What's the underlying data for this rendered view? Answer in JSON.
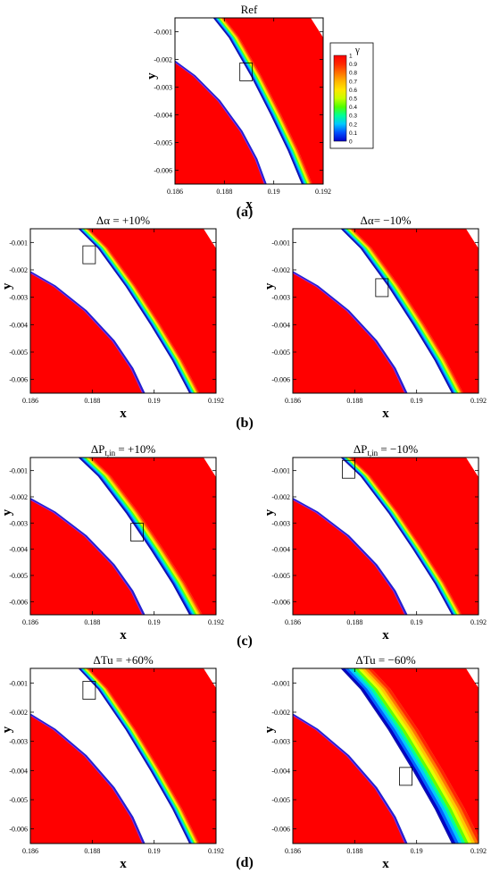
{
  "chart_data": {
    "type": "heatmap",
    "field": "intermittency",
    "colorbar": {
      "title": "γ",
      "ticks": [
        "1",
        "0.9",
        "0.8",
        "0.7",
        "0.6",
        "0.5",
        "0.4",
        "0.3",
        "0.2",
        "0.1",
        "0"
      ],
      "range": [
        0,
        1
      ],
      "colors": [
        "#0000c8",
        "#0050ff",
        "#00c8ff",
        "#00ff96",
        "#50ff00",
        "#c8ff00",
        "#ffe600",
        "#ffb400",
        "#ff6e00",
        "#ff2800",
        "#ff0000"
      ]
    },
    "axes": {
      "xlabel": "x",
      "ylabel": "y",
      "xlim": [
        0.186,
        0.192
      ],
      "ylim": [
        -0.0065,
        -0.0005
      ],
      "xticks": [
        "0.186",
        "0.188",
        "0.19",
        "0.192"
      ],
      "yticks": [
        "-0.001",
        "-0.002",
        "-0.003",
        "-0.004",
        "-0.005",
        "-0.006"
      ]
    },
    "panels": [
      {
        "id": "ref",
        "title": "Ref",
        "band_width": 0.0004,
        "box": [
          0.18888,
          -0.00245
        ]
      },
      {
        "id": "b-left",
        "title": "Δα = +10%",
        "band_width": 0.0003,
        "box": [
          0.1879,
          -0.00145
        ]
      },
      {
        "id": "b-right",
        "title": "Δα= −10%",
        "band_width": 0.00035,
        "box": [
          0.18888,
          -0.00265
        ]
      },
      {
        "id": "c-left",
        "title": "ΔP",
        "title_sub": "t,in",
        "title_tail": " = +10%",
        "band_width": 0.0004,
        "box": [
          0.18945,
          -0.00335
        ]
      },
      {
        "id": "c-right",
        "title": "ΔP",
        "title_sub": "t,in",
        "title_tail": " = −10%",
        "band_width": 0.0003,
        "box": [
          0.1878,
          -0.00095
        ]
      },
      {
        "id": "d-left",
        "title": "ΔTu = +60%",
        "band_width": 0.0003,
        "box": [
          0.1879,
          -0.00125
        ]
      },
      {
        "id": "d-right",
        "title": "ΔTu = −60%",
        "band_width": 0.00095,
        "box": [
          0.18965,
          -0.0042
        ]
      }
    ],
    "sublabels": [
      "(a)",
      "(b)",
      "(c)",
      "(d)"
    ]
  }
}
